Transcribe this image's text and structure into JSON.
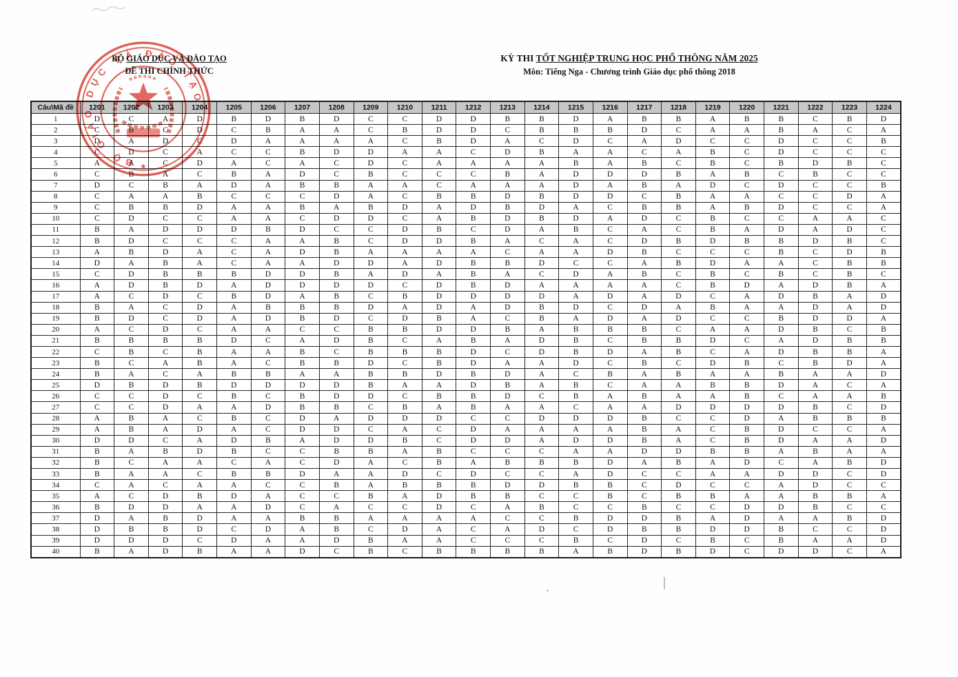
{
  "header": {
    "left": {
      "org_prefix": "BỘ ",
      "org_main": "GIÁO DỤC VÀ ĐÀO TẠO",
      "doc_type": "ĐỀ THI CHÍNH THỨC"
    },
    "right": {
      "title_prefix": "KỲ THI ",
      "title_main": "TỐT NGHIỆP TRUNG HỌC PHỔ THÔNG NĂM 2025",
      "subtitle": "Môn: Tiếng Nga - Chương trình Giáo dục phổ thông 2018"
    }
  },
  "stamp": {
    "ring_text": "BỘ GIÁO DỤC VÀ ĐÀO TẠO",
    "color": "#d63427"
  },
  "table": {
    "corner_label": "Câu\\Mã đề",
    "header_bg": "#c6c7c9",
    "exam_codes": [
      "1201",
      "1202",
      "1203",
      "1204",
      "1205",
      "1206",
      "1207",
      "1208",
      "1209",
      "1210",
      "1211",
      "1212",
      "1213",
      "1214",
      "1215",
      "1216",
      "1217",
      "1218",
      "1219",
      "1220",
      "1221",
      "1222",
      "1223",
      "1224"
    ],
    "answers_by_question": [
      "DCADBDBDCCDDBBDABBABBCBD",
      "CBCDCBAACBDDCBBBDCAABACA",
      "DADCDAAAACBDACDCADCCDCCB",
      "CDCACCBDDAACDBAACABCDCCC",
      "AACDACACDCAAAABABCBCBDBC",
      "CBACBADCBCCCBADDDBABCBCC",
      "DCBADABBAACAAADABADCDCCB",
      "CAABCCCDACBBDBDDCBAACCDA",
      "CBBDAABABDADBDACBBABDCCA",
      "CDCCAACDDCABDBDADCBCCAAC",
      "BADDDBDCCDBCDABCACBADADC",
      "BDCCCAABCDDBACACDBDBBDBC",
      "ABDACADBAAAACAADBCCCBCDB",
      "DABACAADDADBBDCCABDAACBB",
      "CDBBBDDBADABACDABCBCBCBC",
      "ADBDADDDDCDBDAAAACBDADBA",
      "ACDCBDABCBDDDDADADCADBAD",
      "BACDABBBDADADBDCDABAADAD",
      "BDCDADBDCDBACBADADCCBDDA",
      "ACDCAACCBBDDBABBBCAADBCB",
      "BBBBDCADBCABADBCBBDCADBB",
      "CBCBAABCBBBDCDBDABCADBBA",
      "BCABACBBDCBDAADCBCDBCBDA",
      "BACABBAABBDBDACBABAABAAD",
      "DBDBDDDDBAADBABCAABBDACA",
      "CCDCBCBDDCBBDCBABAABCAAB",
      "CCDAADBBCBABAACAADDDDBCD",
      "ABACBCDADDDCCDDDBCCDABBB",
      "ABADACDDCACDAAAABACBDCCA",
      "DDCADBADDBCDDADDBACBDAAD",
      "BABDBCCBBABCCCAADDBBABAA",
      "BCAACACDACBABBBDABADCABD",
      "BAACBBDAADCDCCADCCAADDCD",
      "CACAACCBABBBDDBBCDCCADCC",
      "ACDBDACCBADBBCCBCBBAABBA",
      "BDDAADCACCDCABCCBCCDDBCC",
      "DABDAABBAAAACCBDDBADAABD",
      "DBBDCDABCDACADCDBBDDBCCD",
      "DDDCDAADBAACCCBCDCBCBAAD",
      "BADBAADCBCBBBBABDBDCDDCA"
    ]
  }
}
